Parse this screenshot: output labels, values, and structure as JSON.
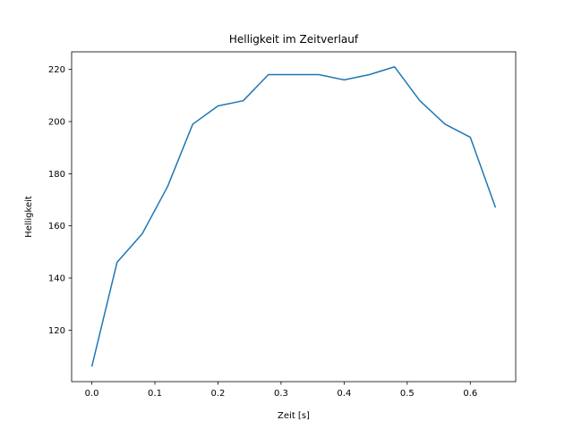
{
  "chart_data": {
    "type": "line",
    "title": "Helligkeit im Zeitverlauf",
    "xlabel": "Zeit [s]",
    "ylabel": "Helligkeit",
    "x": [
      0.0,
      0.04,
      0.08,
      0.12,
      0.16,
      0.2,
      0.24,
      0.28,
      0.32,
      0.36,
      0.4,
      0.44,
      0.48,
      0.52,
      0.56,
      0.6,
      0.64
    ],
    "series": [
      {
        "name": "Helligkeit",
        "color": "#1f77b4",
        "values": [
          106,
          146,
          157,
          175,
          199,
          206,
          208,
          218,
          218,
          218,
          216,
          218,
          221,
          208,
          199,
          194,
          167
        ]
      }
    ],
    "xlim": [
      -0.032,
      0.672
    ],
    "ylim": [
      100.25,
      226.75
    ],
    "xticks": [
      0.0,
      0.1,
      0.2,
      0.3,
      0.4,
      0.5,
      0.6
    ],
    "xtick_labels": [
      "0.0",
      "0.1",
      "0.2",
      "0.3",
      "0.4",
      "0.5",
      "0.6"
    ],
    "yticks": [
      120,
      140,
      160,
      180,
      200,
      220
    ],
    "ytick_labels": [
      "120",
      "140",
      "160",
      "180",
      "200",
      "220"
    ],
    "grid": false,
    "legend": "none"
  }
}
